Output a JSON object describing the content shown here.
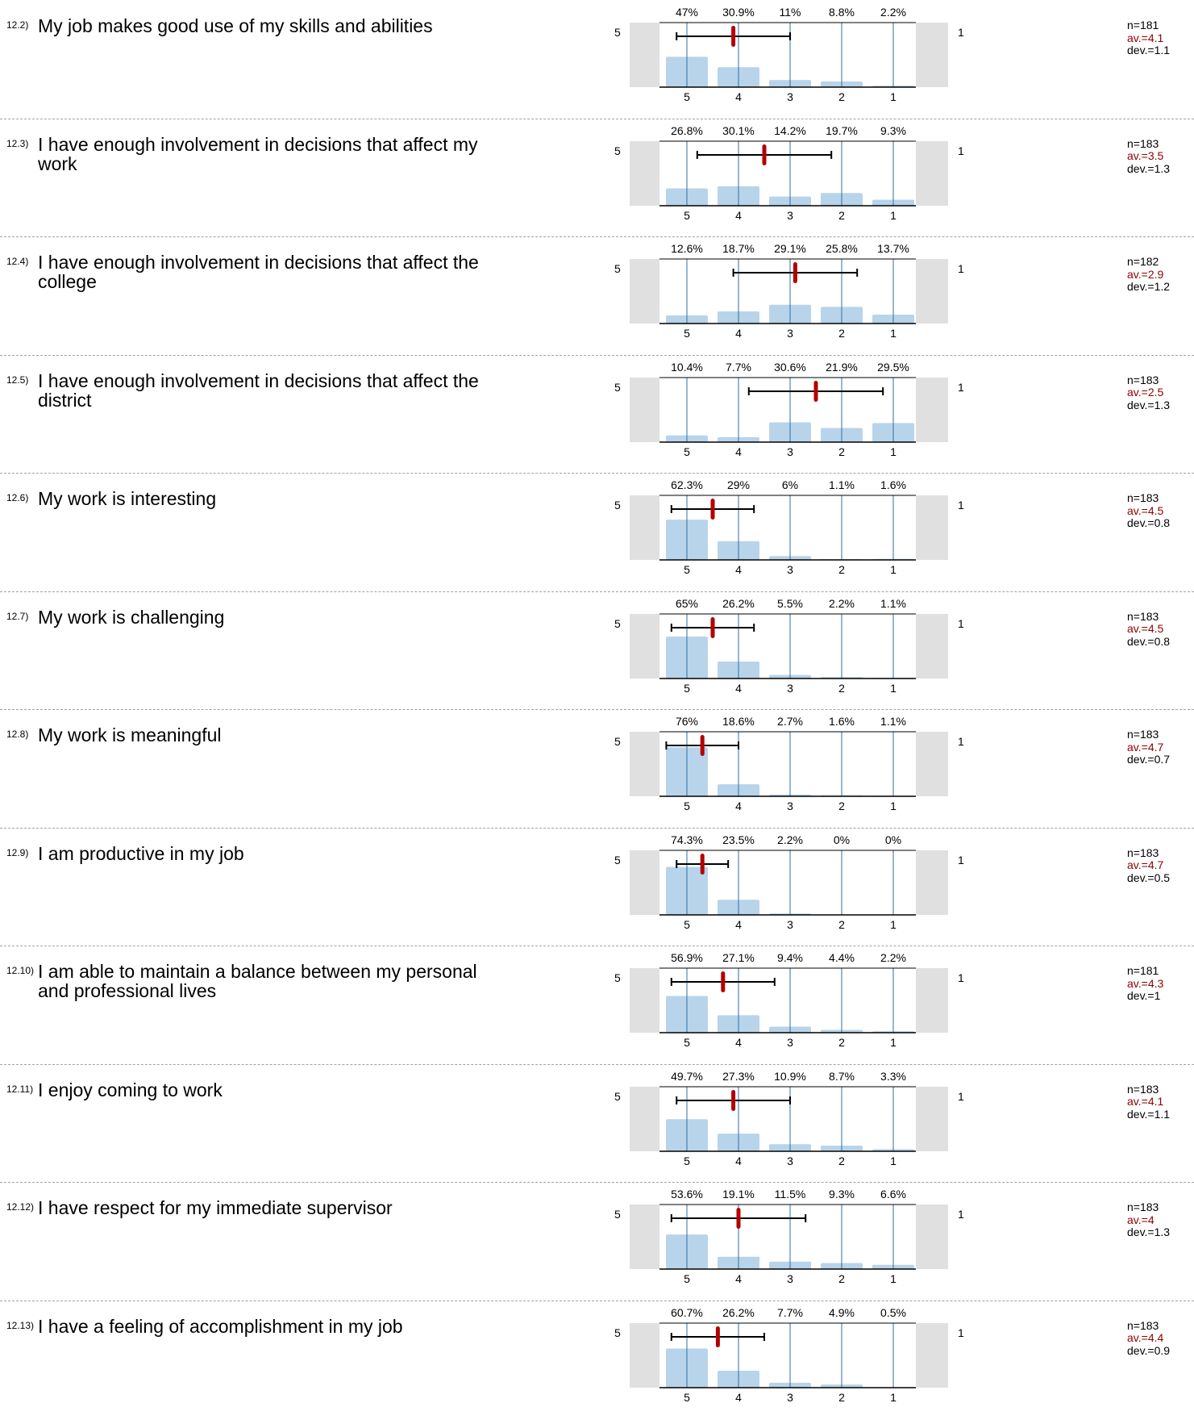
{
  "colors": {
    "bar": "#b8d4ea",
    "gridline": "#2e6fa3",
    "mean": "#b30000",
    "side_panel": "#e0e0e0",
    "separator": "#a3a3a3"
  },
  "scale_left_label": "5",
  "scale_right_label": "1",
  "chart_data": [
    {
      "type": "bar",
      "id": "12.2)",
      "question": "My job makes good use of my skills and abilities",
      "categories": [
        "5",
        "4",
        "3",
        "2",
        "1"
      ],
      "percent_labels": [
        "47%",
        "30.9%",
        "11%",
        "8.8%",
        "2.2%"
      ],
      "values": [
        47,
        30.9,
        11,
        8.8,
        2.2
      ],
      "mean": 4.1,
      "sd": 1.1,
      "stats": {
        "n": "n=181",
        "av": "av.=4.1",
        "dev": "dev.=1.1"
      }
    },
    {
      "type": "bar",
      "id": "12.3)",
      "question": "I have enough involvement in decisions that affect my work",
      "categories": [
        "5",
        "4",
        "3",
        "2",
        "1"
      ],
      "percent_labels": [
        "26.8%",
        "30.1%",
        "14.2%",
        "19.7%",
        "9.3%"
      ],
      "values": [
        26.8,
        30.1,
        14.2,
        19.7,
        9.3
      ],
      "mean": 3.5,
      "sd": 1.3,
      "stats": {
        "n": "n=183",
        "av": "av.=3.5",
        "dev": "dev.=1.3"
      }
    },
    {
      "type": "bar",
      "id": "12.4)",
      "question": "I have enough involvement in decisions that affect the college",
      "categories": [
        "5",
        "4",
        "3",
        "2",
        "1"
      ],
      "percent_labels": [
        "12.6%",
        "18.7%",
        "29.1%",
        "25.8%",
        "13.7%"
      ],
      "values": [
        12.6,
        18.7,
        29.1,
        25.8,
        13.7
      ],
      "mean": 2.9,
      "sd": 1.2,
      "stats": {
        "n": "n=182",
        "av": "av.=2.9",
        "dev": "dev.=1.2"
      }
    },
    {
      "type": "bar",
      "id": "12.5)",
      "question": "I have enough involvement in decisions that affect the district",
      "categories": [
        "5",
        "4",
        "3",
        "2",
        "1"
      ],
      "percent_labels": [
        "10.4%",
        "7.7%",
        "30.6%",
        "21.9%",
        "29.5%"
      ],
      "values": [
        10.4,
        7.7,
        30.6,
        21.9,
        29.5
      ],
      "mean": 2.5,
      "sd": 1.3,
      "stats": {
        "n": "n=183",
        "av": "av.=2.5",
        "dev": "dev.=1.3"
      }
    },
    {
      "type": "bar",
      "id": "12.6)",
      "question": "My work is interesting",
      "categories": [
        "5",
        "4",
        "3",
        "2",
        "1"
      ],
      "percent_labels": [
        "62.3%",
        "29%",
        "6%",
        "1.1%",
        "1.6%"
      ],
      "values": [
        62.3,
        29,
        6,
        1.1,
        1.6
      ],
      "mean": 4.5,
      "sd": 0.8,
      "stats": {
        "n": "n=183",
        "av": "av.=4.5",
        "dev": "dev.=0.8"
      }
    },
    {
      "type": "bar",
      "id": "12.7)",
      "question": "My work is challenging",
      "categories": [
        "5",
        "4",
        "3",
        "2",
        "1"
      ],
      "percent_labels": [
        "65%",
        "26.2%",
        "5.5%",
        "2.2%",
        "1.1%"
      ],
      "values": [
        65,
        26.2,
        5.5,
        2.2,
        1.1
      ],
      "mean": 4.5,
      "sd": 0.8,
      "stats": {
        "n": "n=183",
        "av": "av.=4.5",
        "dev": "dev.=0.8"
      }
    },
    {
      "type": "bar",
      "id": "12.8)",
      "question": "My work is meaningful",
      "categories": [
        "5",
        "4",
        "3",
        "2",
        "1"
      ],
      "percent_labels": [
        "76%",
        "18.6%",
        "2.7%",
        "1.6%",
        "1.1%"
      ],
      "values": [
        76,
        18.6,
        2.7,
        1.6,
        1.1
      ],
      "mean": 4.7,
      "sd": 0.7,
      "stats": {
        "n": "n=183",
        "av": "av.=4.7",
        "dev": "dev.=0.7"
      }
    },
    {
      "type": "bar",
      "id": "12.9)",
      "question": "I am productive in my job",
      "categories": [
        "5",
        "4",
        "3",
        "2",
        "1"
      ],
      "percent_labels": [
        "74.3%",
        "23.5%",
        "2.2%",
        "0%",
        "0%"
      ],
      "values": [
        74.3,
        23.5,
        2.2,
        0,
        0
      ],
      "mean": 4.7,
      "sd": 0.5,
      "stats": {
        "n": "n=183",
        "av": "av.=4.7",
        "dev": "dev.=0.5"
      }
    },
    {
      "type": "bar",
      "id": "12.10)",
      "question": "I am able to maintain a balance between my personal and professional lives",
      "categories": [
        "5",
        "4",
        "3",
        "2",
        "1"
      ],
      "percent_labels": [
        "56.9%",
        "27.1%",
        "9.4%",
        "4.4%",
        "2.2%"
      ],
      "values": [
        56.9,
        27.1,
        9.4,
        4.4,
        2.2
      ],
      "mean": 4.3,
      "sd": 1,
      "stats": {
        "n": "n=181",
        "av": "av.=4.3",
        "dev": "dev.=1"
      }
    },
    {
      "type": "bar",
      "id": "12.11)",
      "question": "I enjoy coming to work",
      "categories": [
        "5",
        "4",
        "3",
        "2",
        "1"
      ],
      "percent_labels": [
        "49.7%",
        "27.3%",
        "10.9%",
        "8.7%",
        "3.3%"
      ],
      "values": [
        49.7,
        27.3,
        10.9,
        8.7,
        3.3
      ],
      "mean": 4.1,
      "sd": 1.1,
      "stats": {
        "n": "n=183",
        "av": "av.=4.1",
        "dev": "dev.=1.1"
      }
    },
    {
      "type": "bar",
      "id": "12.12)",
      "question": "I have respect for my immediate supervisor",
      "categories": [
        "5",
        "4",
        "3",
        "2",
        "1"
      ],
      "percent_labels": [
        "53.6%",
        "19.1%",
        "11.5%",
        "9.3%",
        "6.6%"
      ],
      "values": [
        53.6,
        19.1,
        11.5,
        9.3,
        6.6
      ],
      "mean": 4,
      "sd": 1.3,
      "stats": {
        "n": "n=183",
        "av": "av.=4",
        "dev": "dev.=1.3"
      }
    },
    {
      "type": "bar",
      "id": "12.13)",
      "question": "I have a feeling of accomplishment in my job",
      "categories": [
        "5",
        "4",
        "3",
        "2",
        "1"
      ],
      "percent_labels": [
        "60.7%",
        "26.2%",
        "7.7%",
        "4.9%",
        "0.5%"
      ],
      "values": [
        60.7,
        26.2,
        7.7,
        4.9,
        0.5
      ],
      "mean": 4.4,
      "sd": 0.9,
      "stats": {
        "n": "n=183",
        "av": "av.=4.4",
        "dev": "dev.=0.9"
      }
    }
  ]
}
